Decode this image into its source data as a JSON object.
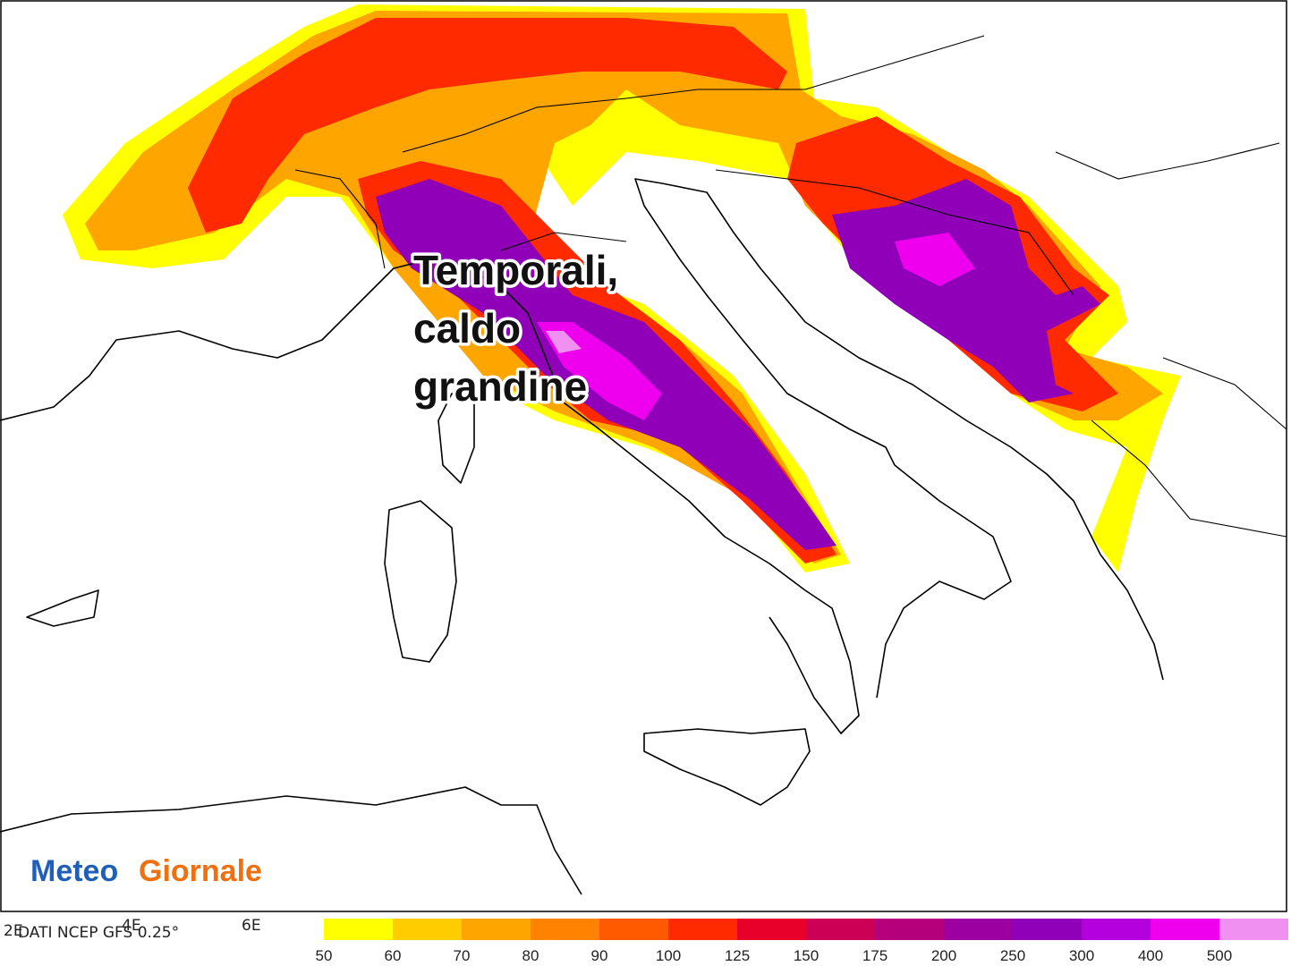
{
  "annotation": [
    "Temporali,",
    "caldo",
    "grandine"
  ],
  "logo": {
    "meteo": "Meteo",
    "giornale": "Giornale"
  },
  "source": "DATI NCEP GFS 0.25°",
  "lon_labels": [
    "2E",
    "4E",
    "6E"
  ],
  "legend": {
    "labels": [
      50,
      60,
      70,
      80,
      90,
      100,
      125,
      150,
      175,
      200,
      250,
      300,
      400,
      500
    ],
    "colors": [
      "#ffff00",
      "#ffcc00",
      "#ffa500",
      "#ff8200",
      "#ff5a00",
      "#ff2a00",
      "#e8002a",
      "#cc0055",
      "#b4007a",
      "#9c00a0",
      "#9000b8",
      "#b400dc",
      "#ee00ee",
      "#f090f0"
    ]
  }
}
